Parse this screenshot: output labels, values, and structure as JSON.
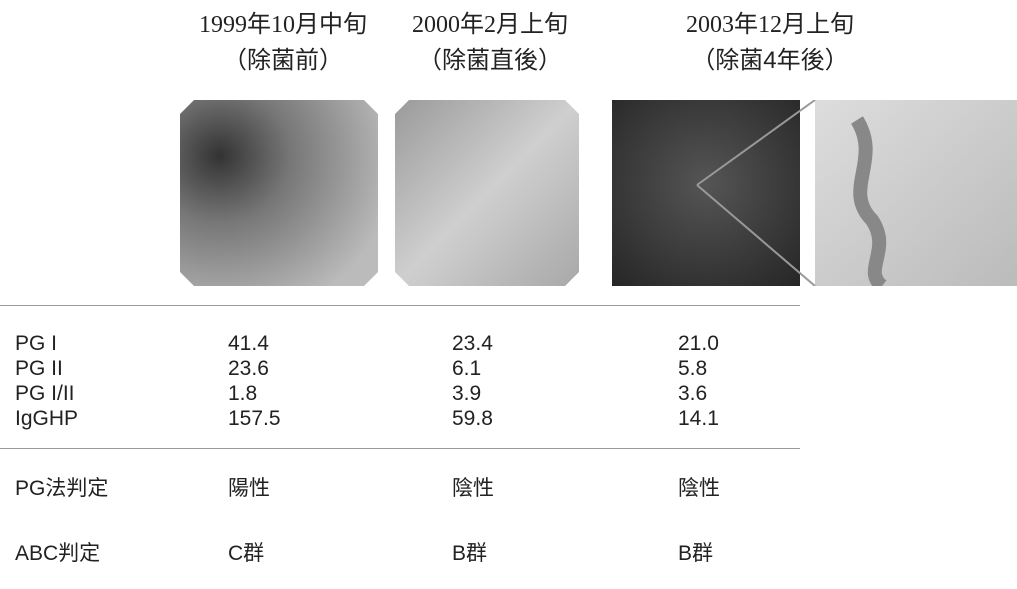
{
  "header": {
    "columns": [
      {
        "date": "1999年10月中旬",
        "note": "（除菌前）"
      },
      {
        "date": "2000年2月上旬",
        "note": "（除菌直後）"
      },
      {
        "date": "2003年12月上旬",
        "note": "（除菌4年後）"
      }
    ]
  },
  "table": {
    "marker_rows": [
      [
        "PG I",
        "41.4",
        "23.4",
        "21.0"
      ],
      [
        "PG II",
        "23.6",
        "6.1",
        "5.8"
      ],
      [
        "PG I/II",
        "1.8",
        "3.9",
        "3.6"
      ],
      [
        "IgGHP",
        "157.5",
        "59.8",
        "14.1"
      ]
    ],
    "judgement_rows": [
      [
        "PG法判定",
        "陽性",
        "陰性",
        "陰性"
      ],
      [
        "ABC判定",
        "C群",
        "B群",
        "B群"
      ]
    ]
  }
}
